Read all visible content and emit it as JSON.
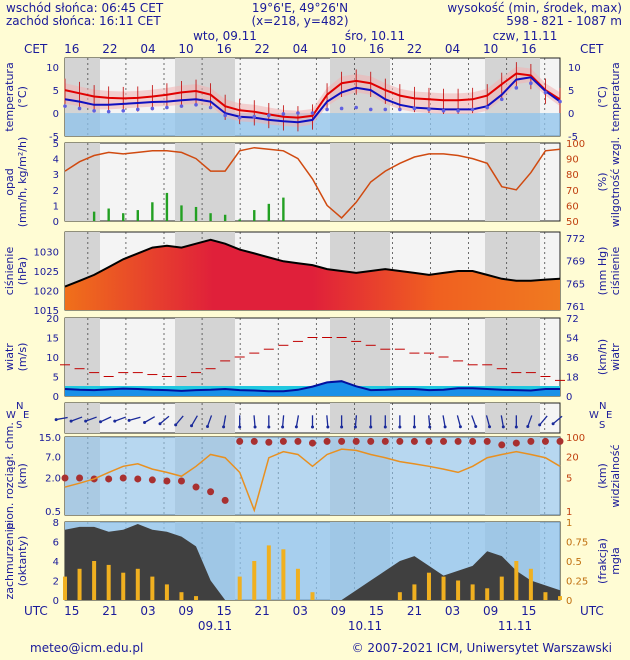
{
  "header": {
    "sunrise": "wschód słońca: 06:45 CET",
    "sunset": "zachód słońca: 16:11 CET",
    "coords": "19°6'E, 49°26'N",
    "grid": "(x=218,  y=482)",
    "elev_label": "wysokość (min, środek, max)",
    "elev_values": "598 - 821 - 1087 m"
  },
  "timeline": {
    "cet": "CET",
    "utc": "UTC",
    "days_top": [
      "wto, 09.11",
      "śro, 10.11",
      "czw, 11.11"
    ],
    "hours_cet": [
      "16",
      "22",
      "04",
      "10",
      "16",
      "22",
      "04",
      "10",
      "16",
      "22",
      "04",
      "10",
      "16"
    ],
    "hours_utc": [
      "15",
      "21",
      "03",
      "09",
      "15",
      "21",
      "03",
      "09",
      "15",
      "21",
      "03",
      "09",
      "15"
    ],
    "days_bottom": [
      "09.11",
      "10.11",
      "11.11"
    ]
  },
  "footer": {
    "email": "meteo@icm.edu.pl",
    "copyright": "© 2007-2021 ICM, Uniwersytet Warszawski"
  },
  "colors": {
    "background": "#fffcd4",
    "text": "#1a1a9a",
    "night": "#d4d4d4",
    "day": "#f4f4f4"
  },
  "chart_data": [
    {
      "type": "line",
      "panel": "temperature",
      "ylabel_left": [
        "temperatura",
        "(°C)"
      ],
      "ylabel_right": [
        "(°C)",
        "temperatura"
      ],
      "ylim": [
        -5,
        12
      ],
      "ticks": [
        10,
        5,
        0,
        -5
      ],
      "series": [
        {
          "values": [
            5,
            4.3,
            3.6,
            3.3,
            3.2,
            3.3,
            3.6,
            4,
            4.5,
            4.8,
            4,
            1.5,
            0.6,
            0.3,
            -0.3,
            -0.8,
            -1,
            -0.6,
            4,
            6.5,
            7,
            6.5,
            5,
            3.8,
            3.2,
            3,
            2.8,
            2.8,
            3,
            3.8,
            6.3,
            8.6,
            8.2,
            5,
            3
          ]
        },
        {
          "values": [
            3,
            2.5,
            1.8,
            1.8,
            2,
            2.2,
            2.4,
            2.5,
            2.8,
            3,
            2.5,
            0,
            -0.8,
            -1,
            -1.5,
            -1.8,
            -2,
            -1.5,
            2.5,
            4.5,
            5.5,
            5,
            3,
            1.8,
            1.2,
            1,
            0.8,
            0.8,
            0.8,
            1.5,
            4,
            7.3,
            7.8,
            4.8,
            2.5
          ]
        },
        {
          "values": [
            1.5,
            1,
            0.5,
            0.3,
            0.5,
            0.8,
            1,
            1.2,
            1.5,
            1.8,
            1.2,
            -0.5,
            -1,
            -0.8,
            -0.5,
            -0.2,
            0,
            0,
            0.8,
            1,
            1.2,
            0.8,
            0.8,
            0.8,
            1,
            0.8,
            0.5,
            0.5,
            0.8,
            1.2,
            3,
            5.5,
            6.5,
            4.5,
            2.5
          ]
        }
      ]
    },
    {
      "type": "bar",
      "panel": "precipitation",
      "ylabel_left": [
        "opad",
        "(mm/h, kg/m²/h)"
      ],
      "ylabel_right": [
        "(%)",
        "wilgotność wzgl."
      ],
      "ylim": [
        0,
        5
      ],
      "ticks": [
        5,
        4,
        3,
        2,
        1,
        0
      ],
      "y2lim": [
        50,
        100
      ],
      "ticks2": [
        100,
        90,
        80,
        70,
        60,
        50
      ],
      "precip": [
        0,
        0,
        0.6,
        0.8,
        0.5,
        0.7,
        1.2,
        1.8,
        1,
        0.9,
        0.5,
        0.4,
        0.1,
        0.7,
        1.1,
        1.5,
        0,
        0,
        0,
        0,
        0,
        0,
        0,
        0,
        0,
        0,
        0,
        0,
        0,
        0,
        0,
        0,
        0,
        0,
        0
      ],
      "humidity": [
        82,
        88,
        92,
        94,
        93,
        94,
        95,
        95,
        94,
        90,
        82,
        82,
        95,
        97,
        96,
        95,
        90,
        77,
        60,
        52,
        62,
        75,
        82,
        87,
        91,
        93,
        93,
        92,
        90,
        87,
        72,
        70,
        81,
        95,
        96
      ]
    },
    {
      "type": "area",
      "panel": "pressure",
      "ylabel_left": [
        "ciśnienie",
        "(hPa)"
      ],
      "ylabel_right": [
        "(mm Hg)",
        "ciśnienie"
      ],
      "ylim": [
        1015,
        1035
      ],
      "ticks": [
        1030,
        1025,
        1020,
        1015
      ],
      "ticks2": [
        772,
        769,
        765,
        761
      ],
      "values": [
        1021,
        1022.5,
        1024,
        1026,
        1028,
        1029.5,
        1031,
        1031.5,
        1031,
        1032,
        1033,
        1032,
        1030.5,
        1029.5,
        1028.5,
        1027.5,
        1027,
        1026.5,
        1025.5,
        1025,
        1024.5,
        1025,
        1025.5,
        1025,
        1024.5,
        1024,
        1024.5,
        1025,
        1025,
        1024,
        1023,
        1022.5,
        1022.5,
        1022.8,
        1023
      ]
    },
    {
      "type": "line",
      "panel": "wind",
      "ylabel_left": [
        "wiatr",
        "(m/s)"
      ],
      "ylabel_right": [
        "(km/h)",
        "wiatr"
      ],
      "ylim": [
        0,
        20
      ],
      "ticks": [
        20,
        15,
        10,
        5,
        0
      ],
      "ticks2": [
        72,
        54,
        36,
        18,
        0
      ],
      "speed": [
        1.8,
        1.6,
        1.5,
        1.7,
        1.9,
        1.8,
        1.6,
        1.5,
        1.3,
        1.5,
        1.6,
        1.8,
        1.5,
        1.4,
        1.2,
        1.2,
        1.6,
        2.4,
        3.5,
        3.8,
        2.5,
        1.5,
        1.6,
        1.8,
        1.8,
        1.5,
        1.6,
        2,
        2,
        1.8,
        1.6,
        1.5,
        1.4,
        1.8,
        1.8
      ],
      "gusts": [
        8,
        7,
        6,
        5,
        6,
        6,
        5.5,
        5,
        5,
        6,
        7,
        9,
        10,
        11,
        12,
        13,
        14,
        15,
        15,
        15,
        14,
        13,
        12,
        12,
        11,
        11,
        10,
        9,
        8,
        8,
        7,
        6,
        6,
        5,
        4
      ]
    },
    {
      "type": "scatter",
      "panel": "wind_direction",
      "labels": [
        "N",
        "W",
        "E",
        "S"
      ],
      "direction_deg": [
        260,
        250,
        250,
        245,
        250,
        255,
        240,
        230,
        220,
        210,
        200,
        190,
        180,
        175,
        180,
        185,
        190,
        180,
        175,
        180,
        185,
        180,
        180,
        180,
        180,
        175,
        170,
        165,
        160,
        165,
        170,
        180,
        200,
        220,
        230
      ]
    },
    {
      "type": "line",
      "panel": "visibility",
      "ylabel_left": [
        "pion. rozciągł. chm.",
        "(km)"
      ],
      "ylabel_right": [
        "(km)",
        "widzialność"
      ],
      "ylim": [
        0,
        15
      ],
      "ticks": [
        "15.0",
        "7.0",
        "2.0",
        "0.5"
      ],
      "ticks2": [
        "100",
        "20",
        "5",
        "1"
      ],
      "cloud_extent": [
        2.3,
        2.3,
        2.2,
        2.2,
        2.3,
        2.2,
        2.1,
        2,
        2,
        1.5,
        1.2,
        0.8,
        13,
        13,
        12.5,
        13,
        13,
        12,
        13,
        13,
        13,
        13,
        13,
        13,
        13,
        13,
        13,
        13,
        13,
        13,
        11,
        12,
        13,
        13,
        13
      ],
      "visibility": [
        1.5,
        1.8,
        2.2,
        3,
        4,
        4.5,
        3.5,
        3,
        2.5,
        4,
        7,
        6,
        3,
        0.5,
        6,
        8,
        7,
        4,
        7,
        9,
        8.5,
        7,
        6,
        5,
        4.5,
        4,
        3.5,
        3,
        4,
        6,
        7,
        8,
        7,
        6,
        4
      ]
    },
    {
      "type": "bar",
      "panel": "cloud_fog",
      "ylabel_left": [
        "zachmurzenie",
        "(oktanty)"
      ],
      "ylabel_right": [
        "(frakcja)",
        "mgła"
      ],
      "ylim": [
        0,
        8
      ],
      "ticks": [
        8,
        6,
        4,
        2,
        0
      ],
      "y2lim": [
        0,
        1
      ],
      "ticks2": [
        "1",
        "0.75",
        "0.5",
        "0.25",
        "0"
      ],
      "cloud_total": [
        7.2,
        7.5,
        7.5,
        7,
        7.2,
        7.8,
        7.2,
        7,
        6.5,
        5.5,
        2,
        0,
        0,
        0,
        0,
        0,
        0,
        0,
        0,
        0,
        1,
        2,
        3,
        4,
        4.5,
        3.5,
        2.5,
        3,
        3.5,
        5,
        4.5,
        3,
        2,
        1.5,
        1
      ],
      "fog": [
        0.3,
        0.4,
        0.5,
        0.45,
        0.35,
        0.4,
        0.3,
        0.2,
        0.1,
        0.05,
        0,
        0,
        0.3,
        0.5,
        0.7,
        0.65,
        0.4,
        0.1,
        0,
        0,
        0,
        0,
        0,
        0.1,
        0.2,
        0.35,
        0.3,
        0.25,
        0.2,
        0.15,
        0.3,
        0.5,
        0.4,
        0.1,
        0.05
      ]
    }
  ]
}
